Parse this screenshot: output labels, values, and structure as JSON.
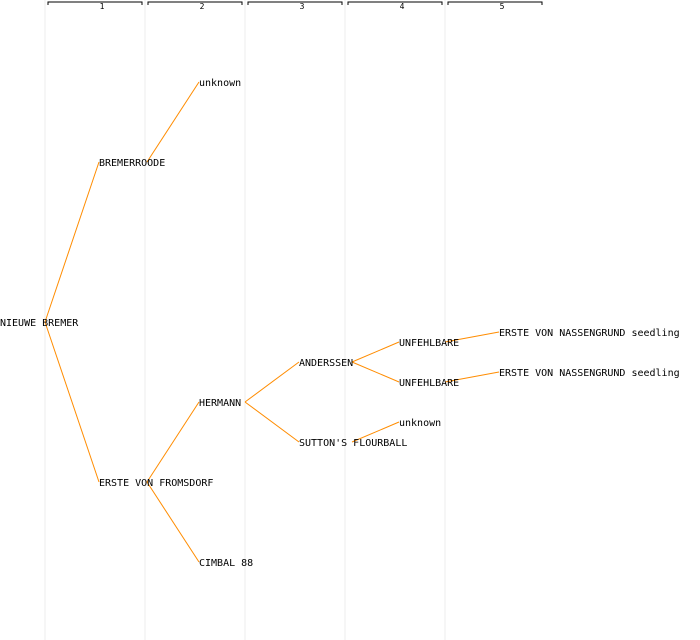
{
  "colors": {
    "background": "#ffffff",
    "edge": "#ff8c00",
    "column_line": "#eeeeee",
    "generation_bracket": "#000000",
    "text": "#000000"
  },
  "generations": [
    "1",
    "2",
    "3",
    "4",
    "5"
  ],
  "nodes": [
    {
      "id": "n0",
      "label": "NIEUWE BREMER",
      "gen": 0
    },
    {
      "id": "n1",
      "label": "BREMERROODE",
      "gen": 1,
      "parent": "n0"
    },
    {
      "id": "n2",
      "label": "ERSTE VON FROMSDORF",
      "gen": 1,
      "parent": "n0"
    },
    {
      "id": "n3",
      "label": "unknown",
      "gen": 2,
      "parent": "n1"
    },
    {
      "id": "n4",
      "label": "HERMANN",
      "gen": 2,
      "parent": "n2"
    },
    {
      "id": "n5",
      "label": "CIMBAL 88",
      "gen": 2,
      "parent": "n2"
    },
    {
      "id": "n6",
      "label": "ANDERSSEN",
      "gen": 3,
      "parent": "n4"
    },
    {
      "id": "n7",
      "label": "SUTTON'S FLOURBALL",
      "gen": 3,
      "parent": "n4"
    },
    {
      "id": "n8",
      "label": "UNFEHLBARE",
      "gen": 4,
      "parent": "n6"
    },
    {
      "id": "n9",
      "label": "UNFEHLBARE",
      "gen": 4,
      "parent": "n6"
    },
    {
      "id": "n10",
      "label": "unknown",
      "gen": 4,
      "parent": "n7"
    },
    {
      "id": "n11",
      "label": "ERSTE VON NASSENGRUND seedling",
      "gen": 5,
      "parent": "n8"
    },
    {
      "id": "n12",
      "label": "ERSTE VON NASSENGRUND seedling",
      "gen": 5,
      "parent": "n9"
    }
  ]
}
